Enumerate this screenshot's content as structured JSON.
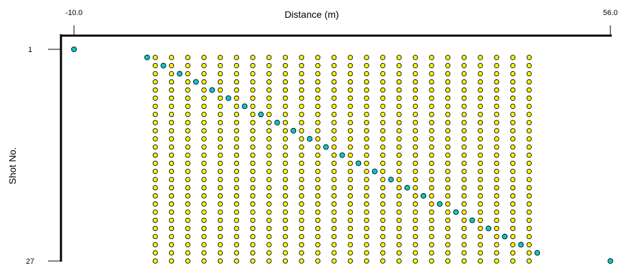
{
  "chart_data": {
    "type": "scatter",
    "xlabel": "Distance (m)",
    "ylabel": "Shot No.",
    "xlim": [
      -10.0,
      56.0
    ],
    "ylim": [
      1,
      27
    ],
    "x_tick_labels": [
      "-10.0",
      "56.0"
    ],
    "y_tick_labels": [
      "1",
      "27"
    ],
    "x_axis_position": "top",
    "y_axis_inverted": true,
    "grid": false,
    "receivers": {
      "x": [
        0,
        2,
        4,
        6,
        8,
        10,
        12,
        14,
        16,
        18,
        20,
        22,
        24,
        26,
        28,
        30,
        32,
        34,
        36,
        38,
        40,
        42,
        44,
        46
      ],
      "shots": [
        2,
        3,
        4,
        5,
        6,
        7,
        8,
        9,
        10,
        11,
        12,
        13,
        14,
        15,
        16,
        17,
        18,
        19,
        20,
        21,
        22,
        23,
        24,
        25,
        26,
        27
      ],
      "color": "#ffff00"
    },
    "sources": {
      "points": [
        {
          "shot": 1,
          "x": -10.0
        },
        {
          "shot": 2,
          "x": -1.0
        },
        {
          "shot": 3,
          "x": 1.0
        },
        {
          "shot": 4,
          "x": 3.0
        },
        {
          "shot": 5,
          "x": 5.0
        },
        {
          "shot": 6,
          "x": 7.0
        },
        {
          "shot": 7,
          "x": 9.0
        },
        {
          "shot": 8,
          "x": 11.0
        },
        {
          "shot": 9,
          "x": 13.0
        },
        {
          "shot": 10,
          "x": 15.0
        },
        {
          "shot": 11,
          "x": 17.0
        },
        {
          "shot": 12,
          "x": 19.0
        },
        {
          "shot": 13,
          "x": 21.0
        },
        {
          "shot": 14,
          "x": 23.0
        },
        {
          "shot": 15,
          "x": 25.0
        },
        {
          "shot": 16,
          "x": 27.0
        },
        {
          "shot": 17,
          "x": 29.0
        },
        {
          "shot": 18,
          "x": 31.0
        },
        {
          "shot": 19,
          "x": 33.0
        },
        {
          "shot": 20,
          "x": 35.0
        },
        {
          "shot": 21,
          "x": 37.0
        },
        {
          "shot": 22,
          "x": 39.0
        },
        {
          "shot": 23,
          "x": 41.0
        },
        {
          "shot": 24,
          "x": 43.0
        },
        {
          "shot": 25,
          "x": 45.0
        },
        {
          "shot": 26,
          "x": 47.0
        },
        {
          "shot": 27,
          "x": 56.0
        }
      ],
      "color": "#00cccc"
    }
  }
}
